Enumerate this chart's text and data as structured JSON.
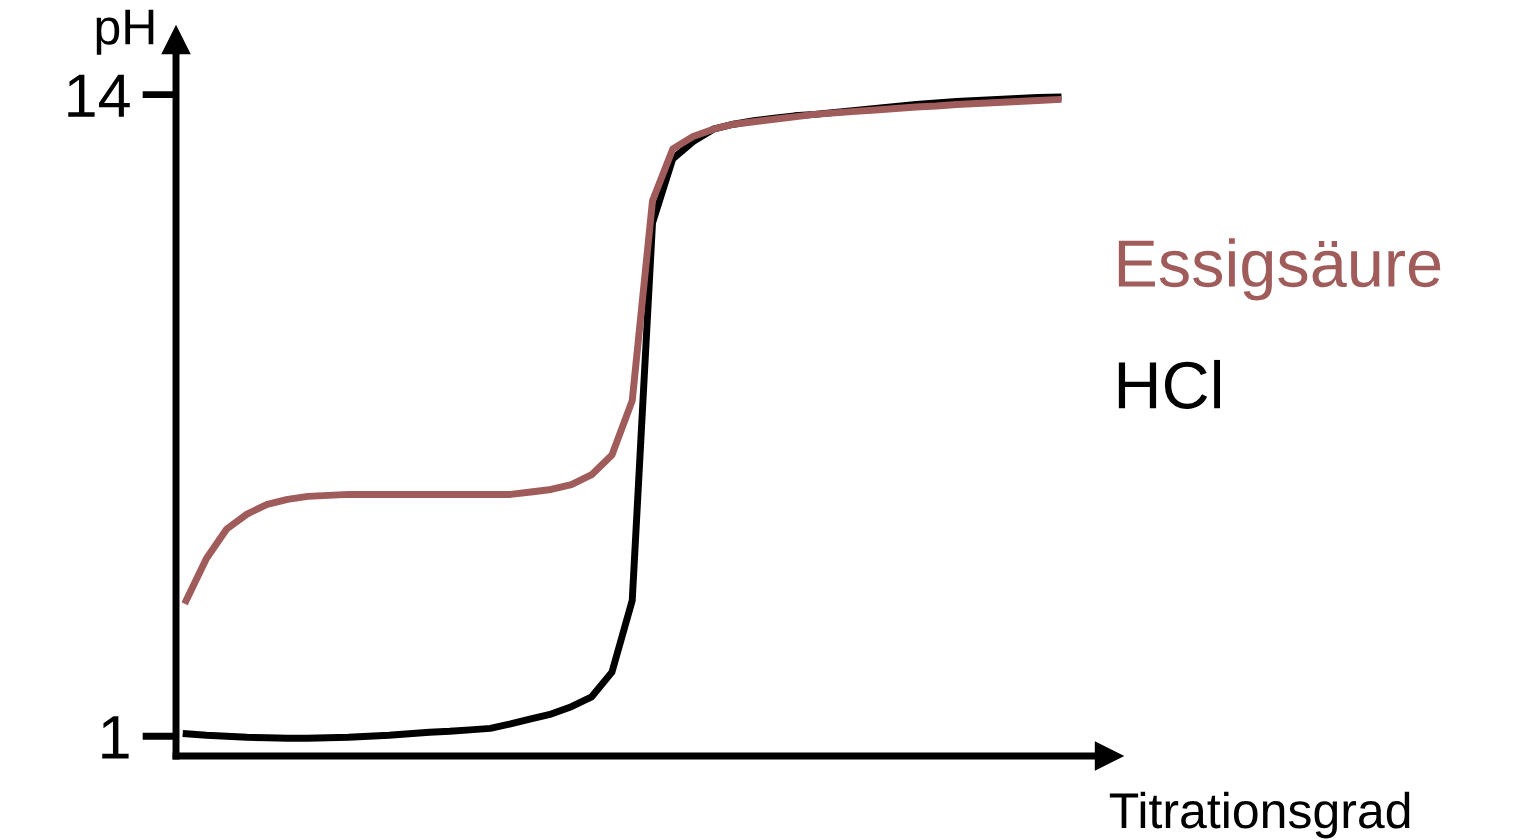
{
  "chart_data": {
    "type": "line",
    "xlabel": "Titrationsgrad",
    "ylabel": "pH",
    "categories": [
      null,
      null,
      null,
      null,
      null,
      null,
      null,
      null,
      null,
      null,
      null,
      null,
      null,
      null,
      null,
      null,
      null,
      null,
      null,
      null,
      null,
      null,
      null,
      null,
      null,
      null,
      null,
      null,
      null,
      null,
      null,
      null,
      null,
      null,
      null,
      null,
      null,
      null,
      null,
      null,
      null,
      null,
      null,
      null
    ],
    "series": [
      {
        "name": "Essigsäure",
        "color": "#a05c5a",
        "values": [
          3.75,
          4.6,
          5.2,
          5.5,
          5.7,
          5.8,
          5.86,
          5.88,
          5.9,
          5.9,
          5.9,
          5.9,
          5.9,
          5.9,
          5.9,
          5.9,
          5.9,
          5.95,
          6.0,
          6.1,
          6.3,
          6.7,
          7.8,
          11.85,
          12.9,
          13.15,
          13.3,
          13.4,
          13.45,
          13.5,
          13.55,
          13.6,
          13.63,
          13.66,
          13.69,
          13.72,
          13.75,
          13.77,
          13.8,
          13.82,
          13.84,
          13.86,
          13.88,
          13.9
        ]
      },
      {
        "name": "HCl",
        "color": "#000000",
        "values": [
          1.05,
          1.02,
          1.0,
          0.98,
          0.97,
          0.96,
          0.96,
          0.97,
          0.98,
          1.0,
          1.02,
          1.05,
          1.08,
          1.1,
          1.13,
          1.16,
          1.25,
          1.35,
          1.45,
          1.6,
          1.8,
          2.3,
          3.75,
          11.4,
          12.7,
          13.05,
          13.3,
          13.4,
          13.47,
          13.52,
          13.57,
          13.6,
          13.64,
          13.68,
          13.72,
          13.76,
          13.8,
          13.83,
          13.86,
          13.88,
          13.9,
          13.92,
          13.94,
          13.95
        ]
      }
    ],
    "ylim": [
      0.6,
      15.1
    ],
    "yticks": [
      1,
      14
    ],
    "tick_labels": "y",
    "grid": false,
    "legend": false,
    "marker": "none",
    "line_style": "solid"
  }
}
